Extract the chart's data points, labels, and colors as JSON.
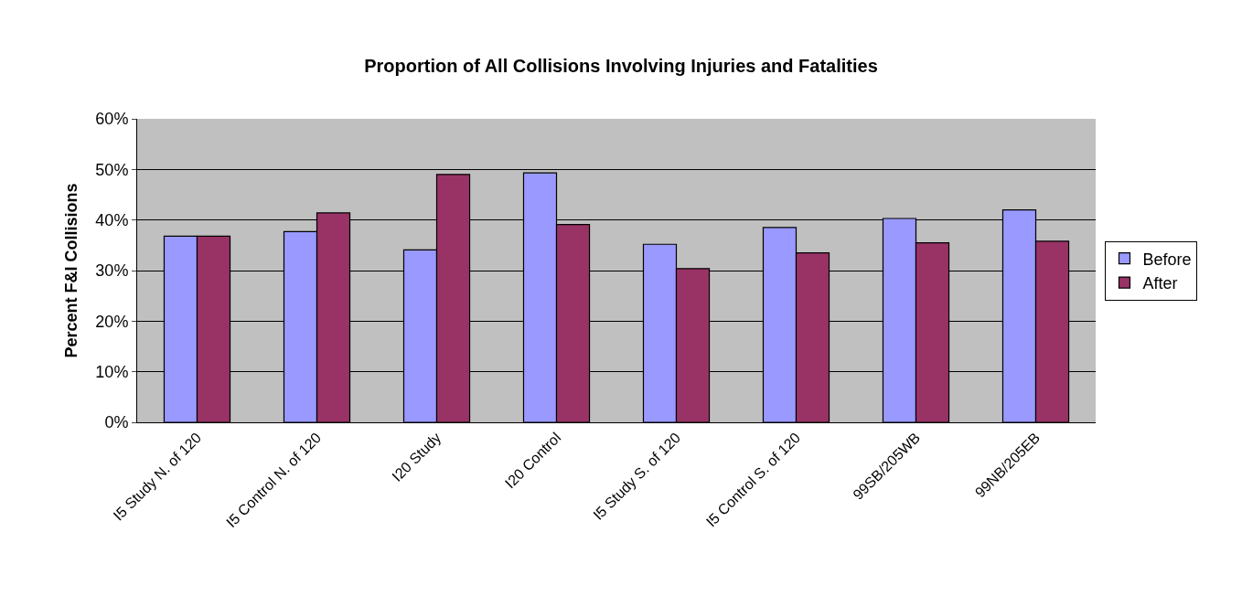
{
  "chart_data": {
    "type": "bar",
    "title": "Proportion of All Collisions Involving Injuries and Fatalities",
    "ylabel": "Percent F&I Collisions",
    "categories": [
      "I5 Study N. of 120",
      "I5 Control N. of 120",
      "I20 Study",
      "I20 Control",
      "I5 Study S. of 120",
      "I5 Control S. of 120",
      "99SB/205WB",
      "99NB/205EB"
    ],
    "series": [
      {
        "name": "Before",
        "color": "#9999ff",
        "values": [
          36.8,
          37.7,
          34.1,
          49.3,
          35.2,
          38.5,
          40.3,
          42.0
        ]
      },
      {
        "name": "After",
        "color": "#993366",
        "values": [
          36.8,
          41.4,
          49.0,
          39.1,
          30.4,
          33.5,
          35.5,
          35.8
        ]
      }
    ],
    "ylim": [
      0,
      60
    ],
    "yticks": [
      {
        "value": 0,
        "label": "0%"
      },
      {
        "value": 10,
        "label": "10%"
      },
      {
        "value": 20,
        "label": "20%"
      },
      {
        "value": 30,
        "label": "30%"
      },
      {
        "value": 40,
        "label": "40%"
      },
      {
        "value": 50,
        "label": "50%"
      },
      {
        "value": 60,
        "label": "60%"
      }
    ],
    "grid": "y",
    "legend": "right"
  }
}
